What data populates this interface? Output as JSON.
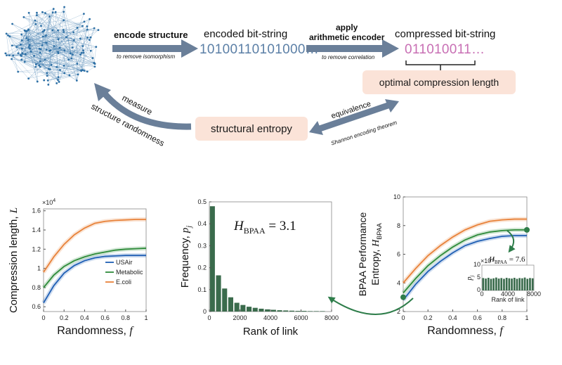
{
  "diagram": {
    "encode_structure": "encode structure",
    "encode_structure_sub": "to remove isomorphism",
    "encoded_title": "encoded bit-string",
    "encoded_bits": "10100110101000…",
    "apply_line1": "apply",
    "apply_line2": "arithmetic encoder",
    "apply_sub": "to remove correlation",
    "compressed_title": "compressed bit-string",
    "compressed_bits": "011010011…",
    "optimal_length": "optimal compression length",
    "structural_entropy": "structural entropy",
    "measure": "measure",
    "structure_randomness": "structure randomness",
    "equivalence": "equivalence",
    "shannon": "Shannon encoding theorem",
    "colors": {
      "box": "#fbe3d8",
      "arrow": "#6a7f99",
      "bits_encoded": "#5b7fa6",
      "bits_compressed": "#c86fb4",
      "network": "#2c6fa5"
    }
  },
  "chart_data": [
    {
      "type": "line",
      "xlabel": "Randomness, ",
      "xlabel_italic": "f",
      "ylabel": "Compression length, ",
      "ylabel_italic": "L",
      "y_multiplier": "×10",
      "y_multiplier_exp": "4",
      "xlim": [
        0,
        1
      ],
      "ylim": [
        0.55,
        1.62
      ],
      "x_ticks": [
        0,
        0.2,
        0.4,
        0.6,
        0.8,
        1
      ],
      "x_tick_labels": [
        "0",
        "0.2",
        "0.4",
        "0.6",
        "0.8",
        "1"
      ],
      "y_ticks": [
        0.6,
        0.8,
        1.0,
        1.2,
        1.4,
        1.6
      ],
      "y_tick_labels": [
        "0.6",
        "0.8",
        "1",
        "1.2",
        "1.4",
        "1.6"
      ],
      "x": [
        0,
        0.1,
        0.2,
        0.3,
        0.4,
        0.5,
        0.6,
        0.7,
        0.8,
        0.9,
        1.0
      ],
      "series": [
        {
          "name": "USAir",
          "color": "#1f5fb4",
          "values": [
            0.64,
            0.82,
            0.95,
            1.03,
            1.08,
            1.11,
            1.125,
            1.13,
            1.135,
            1.135,
            1.135
          ]
        },
        {
          "name": "Metabolic",
          "color": "#2e8b3a",
          "values": [
            0.8,
            0.93,
            1.02,
            1.08,
            1.12,
            1.15,
            1.17,
            1.19,
            1.2,
            1.205,
            1.21
          ]
        },
        {
          "name": "E.coli",
          "color": "#e8823a",
          "values": [
            0.96,
            1.12,
            1.25,
            1.35,
            1.42,
            1.47,
            1.49,
            1.5,
            1.505,
            1.51,
            1.51
          ]
        }
      ],
      "legend": "bottom-right"
    },
    {
      "type": "bar",
      "xlabel": "Rank of link",
      "ylabel": "Frequency, ",
      "ylabel_italic": "p",
      "ylabel_sub": "j",
      "annotation_main": "H",
      "annotation_sub": "BPAA",
      "annotation_value": " = 3.1",
      "xlim": [
        0,
        8000
      ],
      "ylim": [
        0,
        0.5
      ],
      "x_ticks": [
        0,
        2000,
        4000,
        6000,
        8000
      ],
      "x_tick_labels": [
        "0",
        "2000",
        "4000",
        "6000",
        "8000"
      ],
      "y_ticks": [
        0,
        0.1,
        0.2,
        0.3,
        0.4,
        0.5
      ],
      "y_tick_labels": [
        "0",
        "0.1",
        "0.2",
        "0.3",
        "0.4",
        "0.5"
      ],
      "bin_width": 400,
      "values": [
        0.48,
        0.165,
        0.105,
        0.065,
        0.04,
        0.03,
        0.022,
        0.017,
        0.013,
        0.01,
        0.008,
        0.006,
        0.005,
        0.004,
        0.003,
        0.003,
        0.002,
        0.002,
        0.002
      ],
      "color": "#3a6b4c"
    },
    {
      "type": "line",
      "xlabel": "Randomness, ",
      "xlabel_italic": "f",
      "ylabel_line1": "BPAA Performance",
      "ylabel_line2": "Entropy, ",
      "ylabel_italic": "H",
      "ylabel_sub": "BPAA",
      "xlim": [
        0,
        1
      ],
      "ylim": [
        2,
        10
      ],
      "x_ticks": [
        0,
        0.2,
        0.4,
        0.6,
        0.8,
        1
      ],
      "x_tick_labels": [
        "0",
        "0.2",
        "0.4",
        "0.6",
        "0.8",
        "1"
      ],
      "y_ticks": [
        2,
        4,
        6,
        8,
        10
      ],
      "y_tick_labels": [
        "2",
        "4",
        "6",
        "8",
        "10"
      ],
      "x": [
        0,
        0.1,
        0.2,
        0.3,
        0.4,
        0.5,
        0.6,
        0.7,
        0.8,
        0.9,
        1.0
      ],
      "series": [
        {
          "color": "#1f5fb4",
          "values": [
            2.8,
            3.9,
            4.8,
            5.5,
            6.1,
            6.6,
            6.9,
            7.1,
            7.25,
            7.3,
            7.3
          ]
        },
        {
          "color": "#2e8b3a",
          "values": [
            3.3,
            4.3,
            5.2,
            5.9,
            6.5,
            7.0,
            7.35,
            7.55,
            7.65,
            7.7,
            7.7
          ]
        },
        {
          "color": "#e8823a",
          "values": [
            4.0,
            5.0,
            5.9,
            6.6,
            7.2,
            7.7,
            8.05,
            8.3,
            8.4,
            8.45,
            8.45
          ]
        }
      ],
      "highlight_points": [
        {
          "x": 0,
          "y": 3.0
        },
        {
          "x": 1,
          "y": 7.7
        }
      ],
      "inset": {
        "type": "bar",
        "annotation_main": "H",
        "annotation_sub": "BPAA",
        "annotation_value": " = 7.6",
        "y_multiplier": "×10",
        "y_multiplier_exp": "-3",
        "ylabel_italic": "p",
        "ylabel_sub": "j",
        "xlabel": "Rank of link",
        "xlim": [
          0,
          8000
        ],
        "ylim": [
          0,
          10
        ],
        "x_ticks": [
          0,
          4000,
          8000
        ],
        "x_tick_labels": [
          "0",
          "4000",
          "8000"
        ],
        "y_ticks": [
          0,
          5,
          10
        ],
        "y_tick_labels": [
          "0",
          "5",
          "10"
        ],
        "bin_width": 400,
        "values": [
          4.9,
          4.7,
          5.0,
          4.6,
          4.8,
          5.1,
          4.7,
          4.9,
          4.6,
          5.0,
          4.8,
          4.7,
          5.0,
          4.6,
          4.9,
          4.8,
          5.1,
          4.6,
          4.9,
          4.8
        ],
        "color": "#3a6b4c"
      }
    }
  ]
}
